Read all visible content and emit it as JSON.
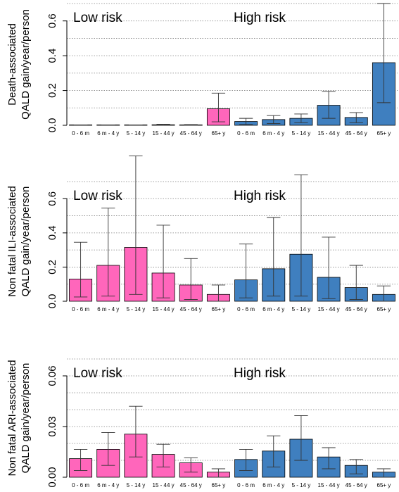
{
  "colors": {
    "low_risk": "#ff66bb",
    "high_risk": "#3f7fbf",
    "error_bar": "#333333",
    "grid": "#808080"
  },
  "chart_data": [
    {
      "type": "bar",
      "ylabel_line1": "Death-associated",
      "ylabel_line2": "QALD gain/year/person",
      "ylim": [
        0,
        0.7
      ],
      "yticks": [
        0.0,
        0.2,
        0.4,
        0.6
      ],
      "ytick_labels": [
        "0.0",
        "0.2",
        "0.4",
        "0.6"
      ],
      "gridlines": [
        0.1,
        0.2,
        0.3,
        0.4,
        0.5,
        0.6,
        0.7
      ],
      "group_labels": [
        "Low risk",
        "High risk"
      ],
      "categories": [
        "0 - 6 m",
        "6 m - 4 y",
        "5 - 14 y",
        "15 - 44 y",
        "45 - 64 y",
        "65+ y",
        "0 - 6 m",
        "6 m - 4 y",
        "5 - 14 y",
        "15 - 44 y",
        "45 - 64 y",
        "65+ y"
      ],
      "group": [
        "low",
        "low",
        "low",
        "low",
        "low",
        "low",
        "high",
        "high",
        "high",
        "high",
        "high",
        "high"
      ],
      "values": [
        0.0003,
        0.0005,
        0.0008,
        0.003,
        0.002,
        0.095,
        0.022,
        0.033,
        0.04,
        0.115,
        0.045,
        0.36
      ],
      "lower": [
        0.0,
        0.0,
        0.0,
        0.0,
        0.0,
        0.02,
        0.005,
        0.01,
        0.015,
        0.04,
        0.015,
        0.13
      ],
      "upper": [
        0.001,
        0.001,
        0.002,
        0.006,
        0.004,
        0.185,
        0.04,
        0.056,
        0.065,
        0.195,
        0.073,
        0.7
      ]
    },
    {
      "type": "bar",
      "ylabel_line1": "Non fatal ILI-associated",
      "ylabel_line2": "QALD gain/year/person",
      "ylim": [
        0,
        0.7
      ],
      "yticks": [
        0.0,
        0.2,
        0.4,
        0.6
      ],
      "ytick_labels": [
        "0.0",
        "0.2",
        "0.4",
        "0.6"
      ],
      "gridlines": [
        0.1,
        0.2,
        0.3,
        0.4,
        0.5,
        0.6,
        0.7
      ],
      "group_labels": [
        "Low risk",
        "High risk"
      ],
      "categories": [
        "0 - 6 m",
        "6 m - 4 y",
        "5 - 14 y",
        "15 - 44 y",
        "45 - 64 y",
        "65+ y",
        "0 - 6 m",
        "6 m - 4 y",
        "5 - 14 y",
        "15 - 44 y",
        "45 - 64 y",
        "65+ y"
      ],
      "group": [
        "low",
        "low",
        "low",
        "low",
        "low",
        "low",
        "high",
        "high",
        "high",
        "high",
        "high",
        "high"
      ],
      "values": [
        0.13,
        0.21,
        0.315,
        0.165,
        0.095,
        0.04,
        0.125,
        0.19,
        0.275,
        0.14,
        0.08,
        0.04
      ],
      "lower": [
        0.025,
        0.03,
        0.04,
        0.02,
        0.01,
        0.0,
        0.02,
        0.03,
        0.03,
        0.015,
        0.01,
        0.0
      ],
      "upper": [
        0.345,
        0.545,
        0.85,
        0.445,
        0.25,
        0.095,
        0.335,
        0.49,
        0.74,
        0.375,
        0.21,
        0.09
      ]
    },
    {
      "type": "bar",
      "ylabel_line1": "Non fatal ARI-associated",
      "ylabel_line2": "QALD gain/year/person",
      "ylim": [
        0,
        0.07
      ],
      "yticks": [
        0.0,
        0.03,
        0.06
      ],
      "ytick_labels": [
        "0.00",
        "0.03",
        "0.06"
      ],
      "gridlines": [
        0.01,
        0.02,
        0.03,
        0.04,
        0.05,
        0.06,
        0.07
      ],
      "group_labels": [
        "Low risk",
        "High risk"
      ],
      "categories": [
        "0 - 6 m",
        "6 m - 4 y",
        "5 - 14 y",
        "15 - 44 y",
        "45 - 64 y",
        "65+ y",
        "0 - 6 m",
        "6 m - 4 y",
        "5 - 14 y",
        "15 - 44 y",
        "45 - 64 y",
        "65+ y"
      ],
      "group": [
        "low",
        "low",
        "low",
        "low",
        "low",
        "low",
        "high",
        "high",
        "high",
        "high",
        "high",
        "high"
      ],
      "values": [
        0.011,
        0.0165,
        0.0255,
        0.0135,
        0.0085,
        0.003,
        0.0105,
        0.0155,
        0.0225,
        0.012,
        0.007,
        0.003
      ],
      "lower": [
        0.004,
        0.007,
        0.012,
        0.006,
        0.003,
        0.0,
        0.004,
        0.006,
        0.01,
        0.005,
        0.002,
        0.0
      ],
      "upper": [
        0.0165,
        0.0265,
        0.042,
        0.0195,
        0.0115,
        0.005,
        0.0165,
        0.0245,
        0.0365,
        0.0175,
        0.0105,
        0.005
      ]
    }
  ]
}
